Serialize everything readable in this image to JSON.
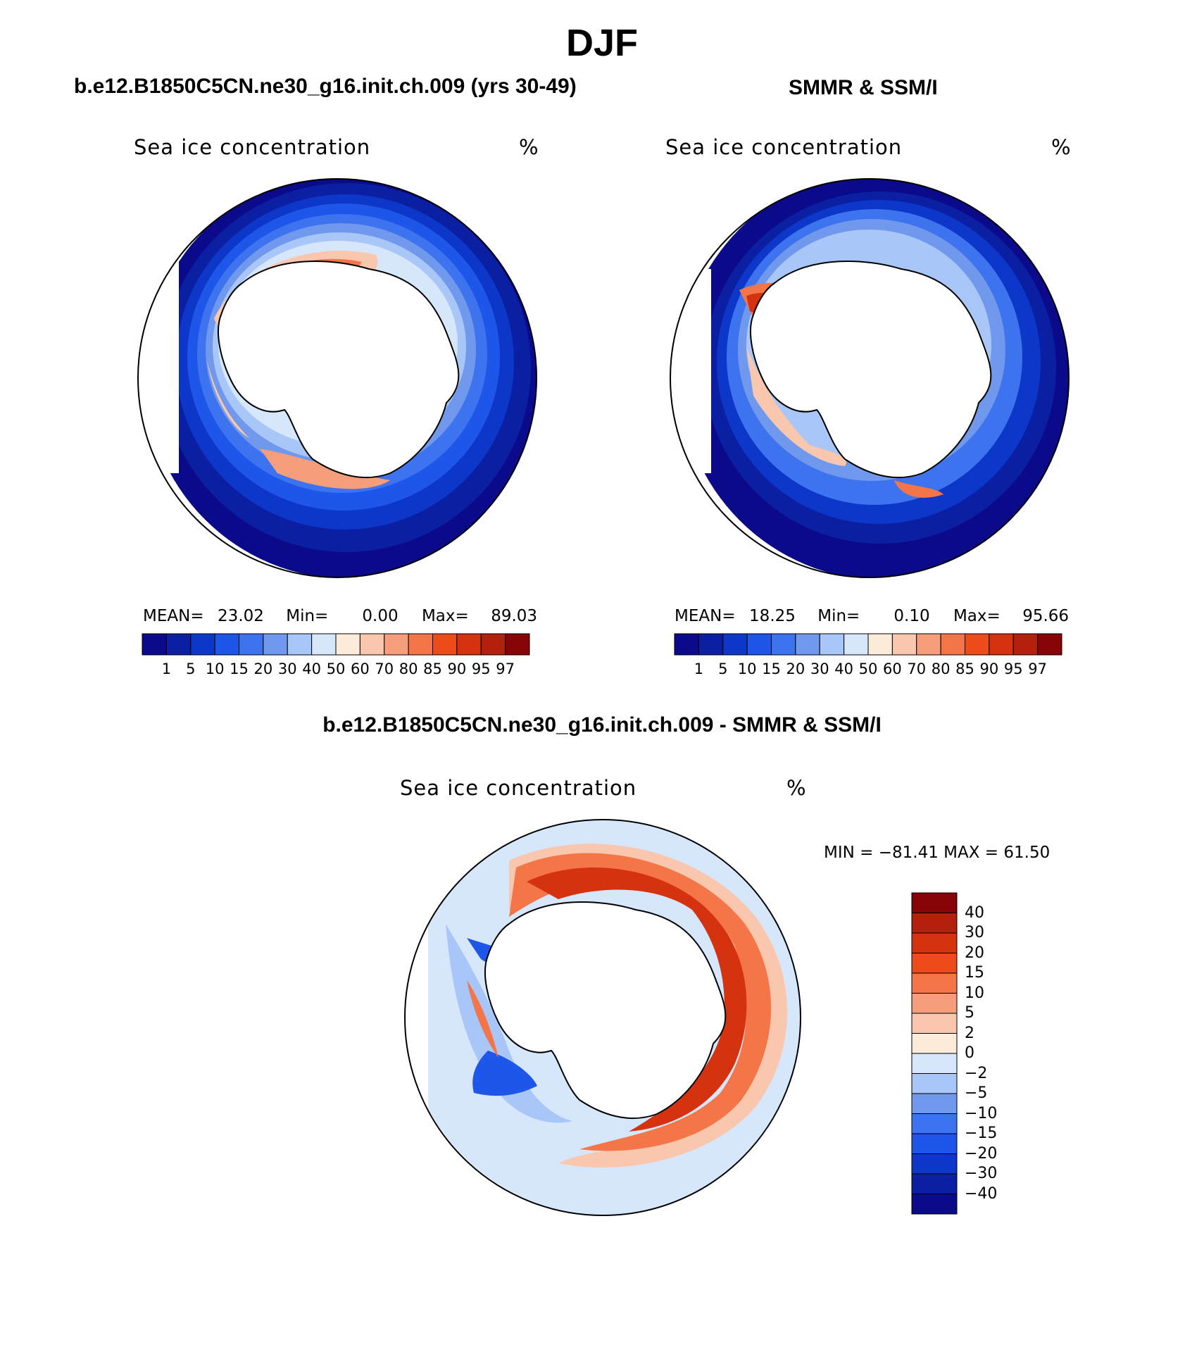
{
  "main_title": "DJF",
  "panels": {
    "model": {
      "title": "b.e12.B1850C5CN.ne30_g16.init.ch.009 (yrs 30-49)",
      "variable": "Sea ice concentration",
      "units": "%",
      "mean_label": "MEAN=",
      "mean": "23.02",
      "min_label": "Min=",
      "min": "0.00",
      "max_label": "Max=",
      "max": "89.03"
    },
    "obs": {
      "title": "SMMR & SSM/I",
      "variable": "Sea ice concentration",
      "units": "%",
      "mean_label": "MEAN=",
      "mean": "18.25",
      "min_label": "Min=",
      "min": "0.10",
      "max_label": "Max=",
      "max": "95.66"
    },
    "diff": {
      "title": "b.e12.B1850C5CN.ne30_g16.init.ch.009 - SMMR & SSM/I",
      "variable": "Sea ice concentration",
      "units": "%",
      "minmax": "MIN = −81.41  MAX =   61.50"
    }
  },
  "colorbar": {
    "levels": [
      "1",
      "5",
      "10",
      "15",
      "20",
      "30",
      "40",
      "50",
      "60",
      "70",
      "80",
      "85",
      "90",
      "95",
      "97"
    ],
    "colors": [
      "#0a0a8a",
      "#0b1fa3",
      "#0d37c8",
      "#1f56ea",
      "#3d73ee",
      "#7099ee",
      "#a8c6f7",
      "#d6e7fb",
      "#fdebd9",
      "#f8c7ad",
      "#f69e7c",
      "#f47648",
      "#ed4b1a",
      "#d53310",
      "#b3200c",
      "#870508"
    ]
  },
  "diff_colorbar": {
    "levels": [
      "40",
      "30",
      "20",
      "15",
      "10",
      "5",
      "2",
      "0",
      "−2",
      "−5",
      "−10",
      "−15",
      "−20",
      "−30",
      "−40"
    ],
    "colors": [
      "#870508",
      "#b3200c",
      "#d53310",
      "#ed4b1a",
      "#f47648",
      "#f69e7c",
      "#f8c7ad",
      "#fdebd9",
      "#d6e7fb",
      "#a8c6f7",
      "#7099ee",
      "#3d73ee",
      "#1f56ea",
      "#0d37c8",
      "#0b1fa3",
      "#0a0a8a"
    ]
  }
}
